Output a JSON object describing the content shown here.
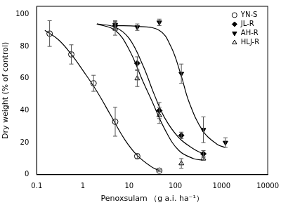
{
  "chart_data": {
    "type": "scatter",
    "x_label": "Penoxsulam （g a.i. ha⁻¹）",
    "y_label": "Dry weight (% of control)",
    "log": "x",
    "xlim": [
      0.1,
      10000
    ],
    "xticks": [
      0.1,
      1,
      10,
      100,
      1000,
      10000
    ],
    "ylim": [
      0,
      105
    ],
    "yticks": [
      0,
      20,
      40,
      60,
      80,
      100
    ],
    "grid": false,
    "legend": "upper right",
    "series": [
      {
        "name": "YN-S",
        "color": "#000000",
        "marker": "circle_open",
        "x": [
          0.19,
          0.56,
          1.7,
          5,
          15,
          45
        ],
        "values": [
          88,
          75,
          57,
          33,
          11.5,
          2.5
        ],
        "errors": [
          8,
          6,
          5,
          9,
          1.5,
          0.5
        ],
        "curve": {
          "x": [
            0.15,
            0.3,
            0.6,
            1,
            2,
            4,
            8,
            15,
            30,
            45
          ],
          "values": [
            90,
            84,
            74,
            65,
            52,
            37,
            22,
            12,
            5,
            2.5
          ]
        }
      },
      {
        "name": "JL-R",
        "color": "#000000",
        "marker": "diamond",
        "x": [
          5,
          15,
          45,
          135,
          405
        ],
        "values": [
          93,
          69.5,
          40,
          24.5,
          13
        ],
        "errors": [
          3,
          4,
          5,
          2,
          2
        ],
        "curve": {
          "x": [
            2,
            5,
            10,
            20,
            35,
            60,
            120,
            250,
            400
          ],
          "values": [
            94,
            92,
            85,
            68,
            50,
            35,
            23,
            16,
            13
          ]
        }
      },
      {
        "name": "AH-R",
        "color": "#000000",
        "marker": "triangle_down",
        "x": [
          5,
          15,
          45,
          135,
          405,
          1215
        ],
        "values": [
          93.5,
          92,
          95,
          63,
          28,
          20
        ],
        "errors": [
          2,
          2,
          2,
          6,
          8,
          3
        ],
        "curve": {
          "x": [
            5,
            15,
            45,
            80,
            130,
            200,
            400,
            800,
            1200
          ],
          "values": [
            93,
            92.5,
            90,
            80,
            63,
            45,
            27,
            19,
            17
          ]
        }
      },
      {
        "name": "HLJ-R",
        "color": "#000000",
        "marker": "triangle_open",
        "x": [
          5,
          15,
          45,
          135,
          405
        ],
        "values": [
          91,
          60,
          37,
          7,
          10
        ],
        "errors": [
          4,
          5,
          5,
          3,
          1
        ],
        "curve": {
          "x": [
            2,
            5,
            10,
            20,
            30,
            60,
            120,
            250,
            400
          ],
          "values": [
            94,
            90,
            78,
            58,
            47,
            28,
            15,
            10,
            9
          ]
        }
      }
    ]
  }
}
